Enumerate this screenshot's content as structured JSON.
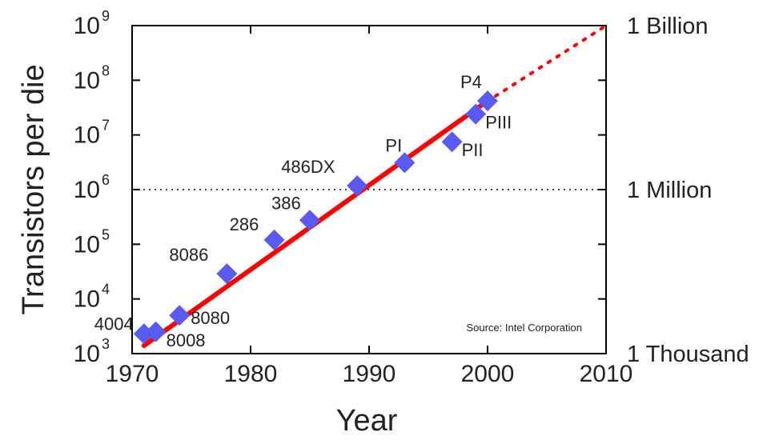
{
  "chart_data": {
    "type": "scatter",
    "title": "",
    "xlabel": "Year",
    "ylabel": "Transistors per die",
    "xlim": [
      1970,
      2010
    ],
    "ylim_exponent": [
      3,
      9
    ],
    "yscale": "log",
    "x_ticks": [
      "1970",
      "1980",
      "1990",
      "2000",
      "2010"
    ],
    "y_ticks": [
      {
        "base": "10",
        "exp": "3"
      },
      {
        "base": "10",
        "exp": "4"
      },
      {
        "base": "10",
        "exp": "5"
      },
      {
        "base": "10",
        "exp": "6"
      },
      {
        "base": "10",
        "exp": "7"
      },
      {
        "base": "10",
        "exp": "8"
      },
      {
        "base": "10",
        "exp": "9"
      }
    ],
    "right_labels": [
      {
        "text": "1 Billion",
        "value": 1000000000
      },
      {
        "text": "1 Million",
        "value": 1000000
      },
      {
        "text": "1 Thousand",
        "value": 1000
      }
    ],
    "source": "Source: Intel Corporation",
    "reference_line": {
      "value": 1000000,
      "style": "dotted"
    },
    "trend": {
      "color": "#ff0000",
      "points": [
        [
          1971,
          1400
        ],
        [
          2000,
          42000000
        ]
      ],
      "extrapolated": [
        [
          2000,
          42000000
        ],
        [
          2010,
          1000000000
        ]
      ]
    },
    "marker_color": "#5a5af0",
    "points": [
      {
        "label": "4004",
        "x": 1971,
        "y": 2300
      },
      {
        "label": "8008",
        "x": 1972,
        "y": 2500
      },
      {
        "label": "8080",
        "x": 1974,
        "y": 5000
      },
      {
        "label": "8086",
        "x": 1978,
        "y": 29000
      },
      {
        "label": "286",
        "x": 1982,
        "y": 120000
      },
      {
        "label": "386",
        "x": 1985,
        "y": 275000
      },
      {
        "label": "486DX",
        "x": 1989,
        "y": 1180000
      },
      {
        "label": "PI",
        "x": 1993,
        "y": 3100000
      },
      {
        "label": "PII",
        "x": 1997,
        "y": 7500000
      },
      {
        "label": "PIII",
        "x": 1999,
        "y": 24000000
      },
      {
        "label": "P4",
        "x": 2000,
        "y": 42000000
      }
    ]
  }
}
